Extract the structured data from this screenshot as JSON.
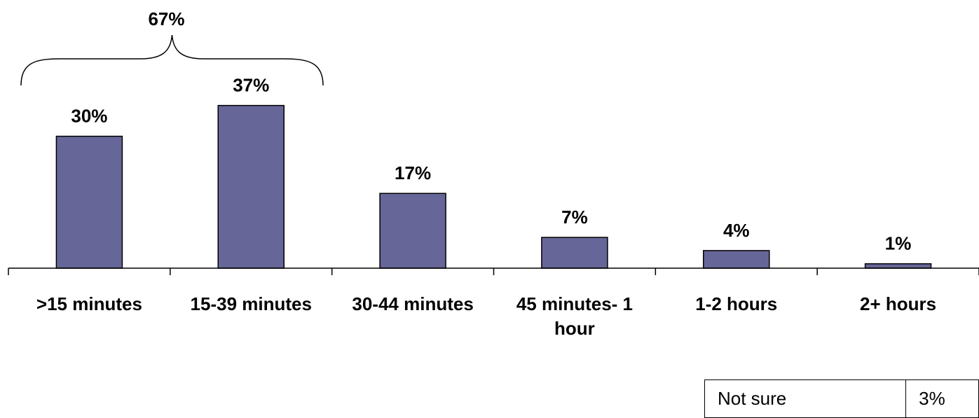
{
  "chart_data": {
    "type": "bar",
    "categories": [
      ">15 minutes",
      "15-39 minutes",
      "30-44 minutes",
      "45 minutes- 1 hour",
      "1-2 hours",
      "2+ hours"
    ],
    "values": [
      30,
      37,
      17,
      7,
      4,
      1
    ],
    "value_labels": [
      "30%",
      "37%",
      "17%",
      "7%",
      "4%",
      "1%"
    ],
    "bar_color": "#666699",
    "ylim": [
      0,
      40
    ],
    "grid": false,
    "annotations": [
      {
        "text": "67%",
        "spans_categories": [
          ">15 minutes",
          "15-39 minutes"
        ],
        "type": "brace"
      }
    ]
  },
  "note_table": {
    "label": "Not sure",
    "value": "3%"
  }
}
